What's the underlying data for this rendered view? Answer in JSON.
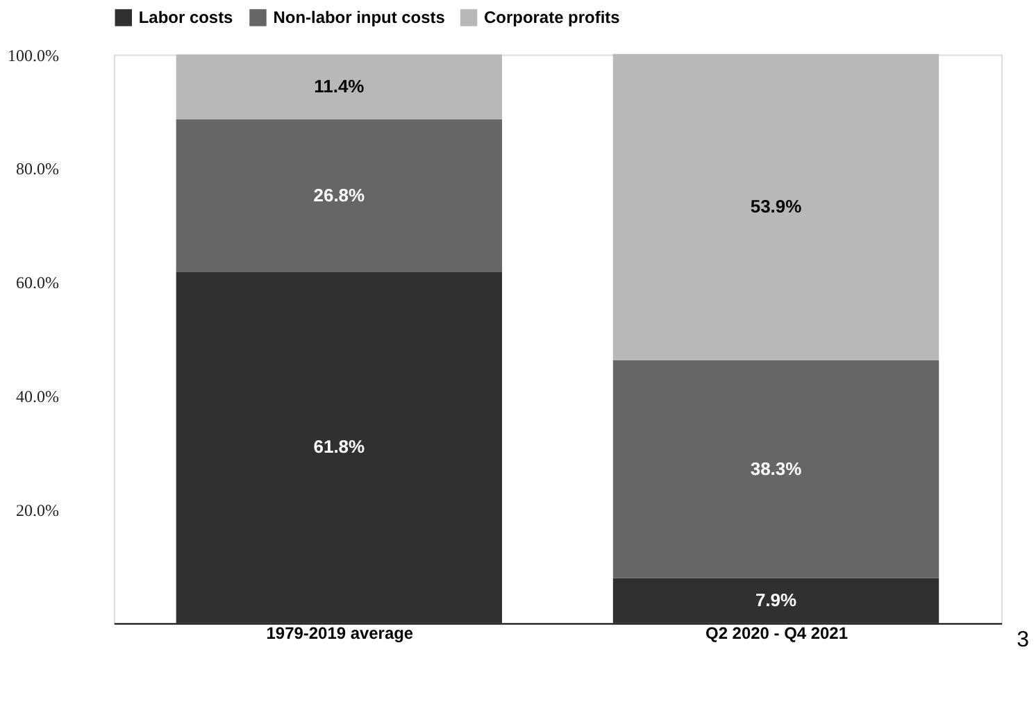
{
  "chart_data": {
    "type": "bar",
    "stacked": true,
    "categories": [
      "1979-2019 average",
      "Q2 2020 - Q4 2021"
    ],
    "series": [
      {
        "name": "Labor costs",
        "color": "#303030",
        "values": [
          61.8,
          7.9
        ]
      },
      {
        "name": "Non-labor input costs",
        "color": "#666666",
        "values": [
          26.8,
          38.3
        ]
      },
      {
        "name": "Corporate profits",
        "color": "#b8b8b8",
        "values": [
          11.4,
          53.9
        ]
      }
    ],
    "value_labels": [
      [
        "61.8%",
        "7.9%"
      ],
      [
        "26.8%",
        "38.3%"
      ],
      [
        "11.4%",
        "53.9%"
      ]
    ],
    "ylim": [
      0,
      100
    ],
    "yticks": [
      {
        "value": 20,
        "label": "20.0%"
      },
      {
        "value": 40,
        "label": "40.0%"
      },
      {
        "value": 60,
        "label": "60.0%"
      },
      {
        "value": 80,
        "label": "80.0%"
      },
      {
        "value": 100,
        "label": "100.0%"
      }
    ],
    "grid": false,
    "legend": "top left",
    "annotations": [
      "3"
    ]
  }
}
